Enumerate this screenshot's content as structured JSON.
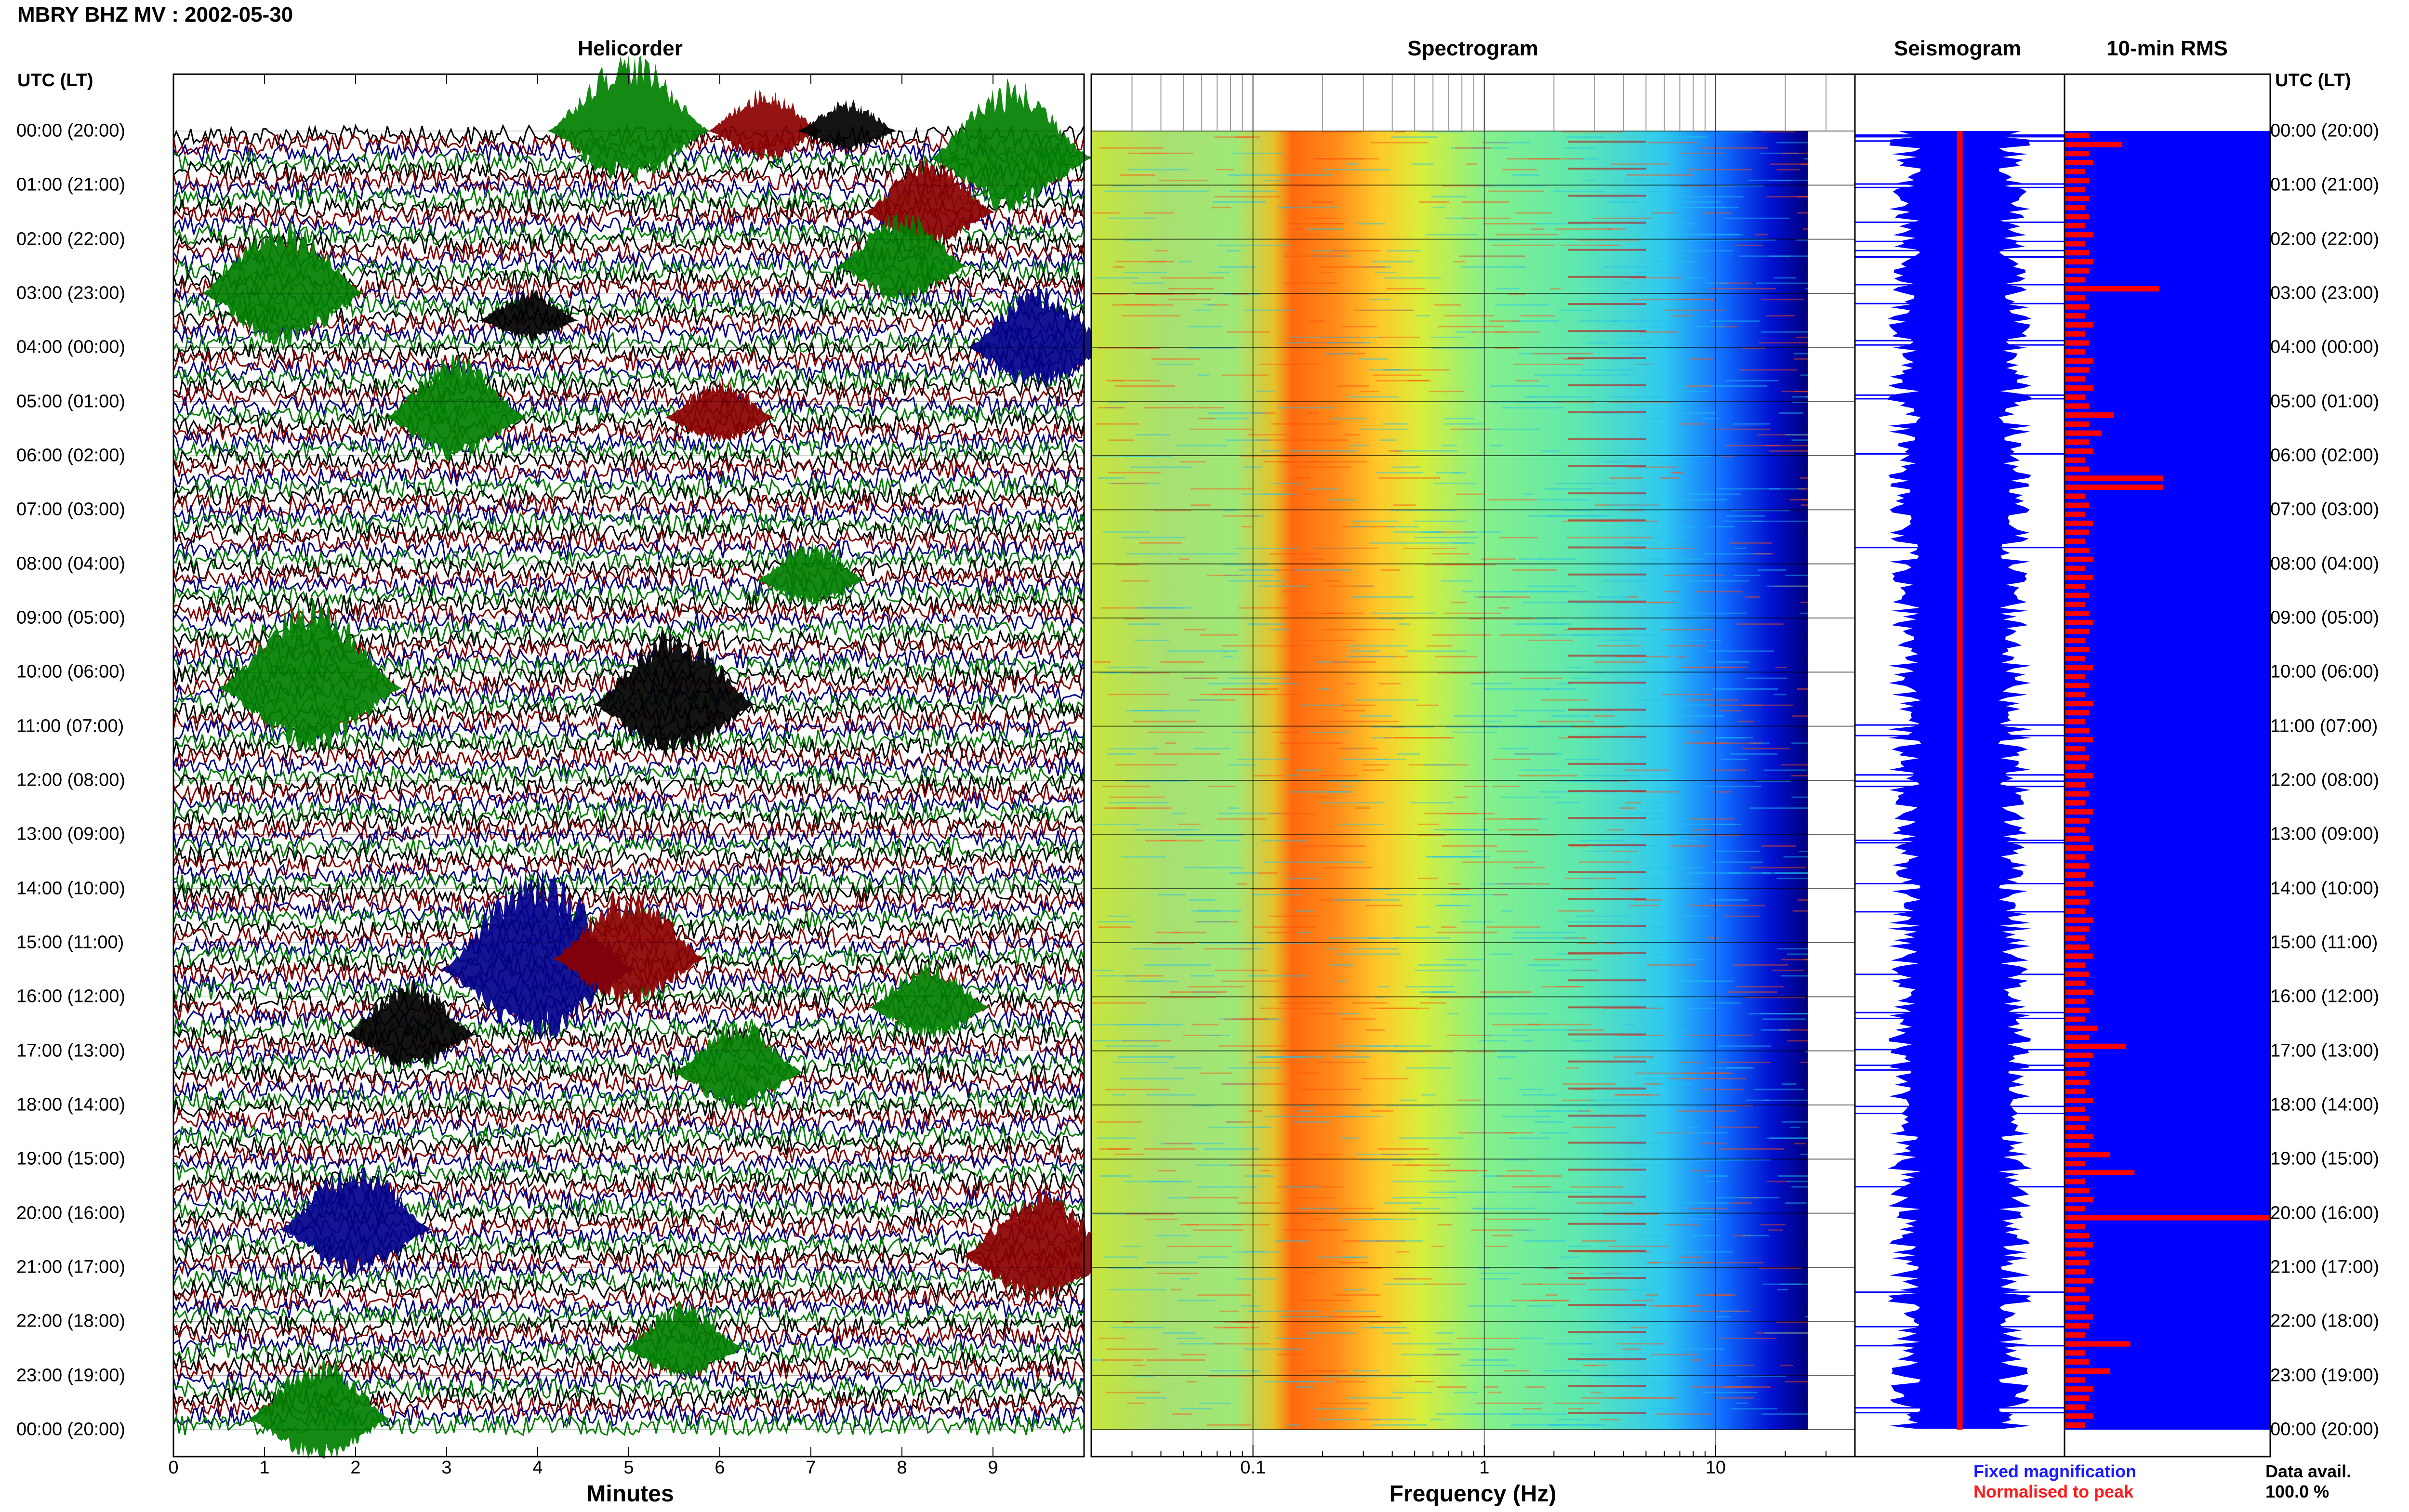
{
  "page_title": "MBRY BHZ MV : 2002-05-30",
  "panels": {
    "helicorder": "Helicorder",
    "spectrogram": "Spectrogram",
    "seismogram": "Seismogram",
    "rms": "10-min RMS"
  },
  "utc_header_left": "UTC (LT)",
  "utc_header_right": "UTC (LT)",
  "hour_labels": [
    "00:00 (20:00)",
    "01:00 (21:00)",
    "02:00 (22:00)",
    "03:00 (23:00)",
    "04:00 (00:00)",
    "05:00 (01:00)",
    "06:00 (02:00)",
    "07:00 (03:00)",
    "08:00 (04:00)",
    "09:00 (05:00)",
    "10:00 (06:00)",
    "11:00 (07:00)",
    "12:00 (08:00)",
    "13:00 (09:00)",
    "14:00 (10:00)",
    "15:00 (11:00)",
    "16:00 (12:00)",
    "17:00 (13:00)",
    "18:00 (14:00)",
    "19:00 (15:00)",
    "20:00 (16:00)",
    "21:00 (17:00)",
    "22:00 (18:00)",
    "23:00 (19:00)",
    "00:00 (20:00)"
  ],
  "legend": {
    "fixed": "Fixed magnification",
    "normalised": "Normalised to peak"
  },
  "data_avail": {
    "label": "Data avail.",
    "value": "100.0 %"
  },
  "colors": {
    "trace_cycle": [
      "#000000",
      "#8b0000",
      "#00008b",
      "#008000"
    ],
    "seismogram_fill": "#0000ff",
    "rms_bar": "#ff0000",
    "rms_bg": "#0000ff",
    "spectrogram_ramp": [
      "#00007f",
      "#0000ff",
      "#00bfff",
      "#40ffbf",
      "#bfff40",
      "#ffbf00",
      "#ff4000",
      "#7f0000"
    ]
  },
  "chart_data": [
    {
      "type": "line",
      "title": "Helicorder",
      "xlabel": "Minutes",
      "ylabel": "UTC (LT)",
      "x_ticks": [
        "0",
        "1",
        "2",
        "3",
        "4",
        "5",
        "6",
        "7",
        "8",
        "9"
      ],
      "xlim": [
        0,
        10
      ],
      "rows_per_hour": 6,
      "hours": 24,
      "events": [
        {
          "hour": 0.0,
          "minute": 5.0,
          "color": "green",
          "amp": 1.0
        },
        {
          "hour": 0.0,
          "minute": 6.5,
          "color": "darkred",
          "amp": 0.55
        },
        {
          "hour": 0.0,
          "minute": 7.4,
          "color": "black",
          "amp": 0.4
        },
        {
          "hour": 0.5,
          "minute": 9.2,
          "color": "green",
          "amp": 1.0
        },
        {
          "hour": 1.5,
          "minute": 8.3,
          "color": "darkred",
          "amp": 0.7
        },
        {
          "hour": 2.5,
          "minute": 8.0,
          "color": "green",
          "amp": 0.7
        },
        {
          "hour": 3.0,
          "minute": 1.2,
          "color": "green",
          "amp": 1.0
        },
        {
          "hour": 3.5,
          "minute": 3.9,
          "color": "black",
          "amp": 0.4
        },
        {
          "hour": 4.0,
          "minute": 9.5,
          "color": "blue",
          "amp": 0.8
        },
        {
          "hour": 5.3,
          "minute": 3.1,
          "color": "green",
          "amp": 0.8
        },
        {
          "hour": 5.3,
          "minute": 6.0,
          "color": "darkred",
          "amp": 0.5
        },
        {
          "hour": 8.3,
          "minute": 7.0,
          "color": "green",
          "amp": 0.5
        },
        {
          "hour": 10.3,
          "minute": 1.5,
          "color": "green",
          "amp": 1.2
        },
        {
          "hour": 10.6,
          "minute": 5.5,
          "color": "black",
          "amp": 1.0
        },
        {
          "hour": 15.5,
          "minute": 4.0,
          "color": "blue",
          "amp": 1.3
        },
        {
          "hour": 15.3,
          "minute": 5.0,
          "color": "darkred",
          "amp": 0.9
        },
        {
          "hour": 16.2,
          "minute": 8.3,
          "color": "green",
          "amp": 0.6
        },
        {
          "hour": 16.7,
          "minute": 2.6,
          "color": "black",
          "amp": 0.7
        },
        {
          "hour": 17.4,
          "minute": 6.2,
          "color": "green",
          "amp": 0.7
        },
        {
          "hour": 20.3,
          "minute": 2.0,
          "color": "blue",
          "amp": 0.9
        },
        {
          "hour": 20.8,
          "minute": 9.5,
          "color": "darkred",
          "amp": 0.9
        },
        {
          "hour": 22.5,
          "minute": 5.6,
          "color": "green",
          "amp": 0.6
        },
        {
          "hour": 23.8,
          "minute": 1.6,
          "color": "green",
          "amp": 0.8
        }
      ]
    },
    {
      "type": "heatmap",
      "title": "Spectrogram",
      "xlabel": "Frequency (Hz)",
      "x_scale": "log",
      "x_ticks": [
        "0.1",
        "1",
        "10"
      ],
      "xlim": [
        0.02,
        40
      ],
      "peak_band_hz": [
        0.22,
        0.6
      ],
      "data_max_hz": 25
    },
    {
      "type": "area",
      "title": "Seismogram",
      "series": [
        {
          "name": "Fixed magnification",
          "color": "#0000ff"
        },
        {
          "name": "Normalised to peak",
          "color": "#ff0000"
        }
      ]
    },
    {
      "type": "bar",
      "title": "10-min RMS",
      "orientation": "horizontal",
      "bins": 144,
      "xlim": [
        0,
        1
      ],
      "values": [
        0.12,
        0.28,
        0.12,
        0.14,
        0.1,
        0.12,
        0.1,
        0.12,
        0.1,
        0.12,
        0.1,
        0.14,
        0.1,
        0.12,
        0.14,
        0.12,
        0.1,
        0.46,
        0.1,
        0.12,
        0.1,
        0.14,
        0.1,
        0.12,
        0.1,
        0.14,
        0.12,
        0.1,
        0.14,
        0.1,
        0.12,
        0.24,
        0.12,
        0.18,
        0.12,
        0.14,
        0.1,
        0.12,
        0.48,
        0.48,
        0.1,
        0.12,
        0.1,
        0.14,
        0.12,
        0.1,
        0.12,
        0.14,
        0.1,
        0.14,
        0.1,
        0.12,
        0.1,
        0.12,
        0.14,
        0.12,
        0.1,
        0.12,
        0.1,
        0.14,
        0.1,
        0.12,
        0.1,
        0.14,
        0.12,
        0.1,
        0.12,
        0.14,
        0.1,
        0.12,
        0.1,
        0.14,
        0.1,
        0.12,
        0.1,
        0.14,
        0.12,
        0.1,
        0.12,
        0.14,
        0.1,
        0.12,
        0.1,
        0.14,
        0.1,
        0.12,
        0.1,
        0.14,
        0.12,
        0.1,
        0.12,
        0.14,
        0.1,
        0.12,
        0.1,
        0.14,
        0.1,
        0.12,
        0.1,
        0.16,
        0.12,
        0.3,
        0.14,
        0.12,
        0.1,
        0.12,
        0.1,
        0.14,
        0.1,
        0.12,
        0.1,
        0.14,
        0.12,
        0.22,
        0.1,
        0.34,
        0.1,
        0.12,
        0.14,
        0.1,
        1.0,
        0.1,
        0.12,
        0.14,
        0.1,
        0.12,
        0.1,
        0.14,
        0.1,
        0.12,
        0.1,
        0.14,
        0.12,
        0.1,
        0.32,
        0.1,
        0.12,
        0.22,
        0.1,
        0.14,
        0.12,
        0.1,
        0.14,
        0.1
      ]
    }
  ]
}
